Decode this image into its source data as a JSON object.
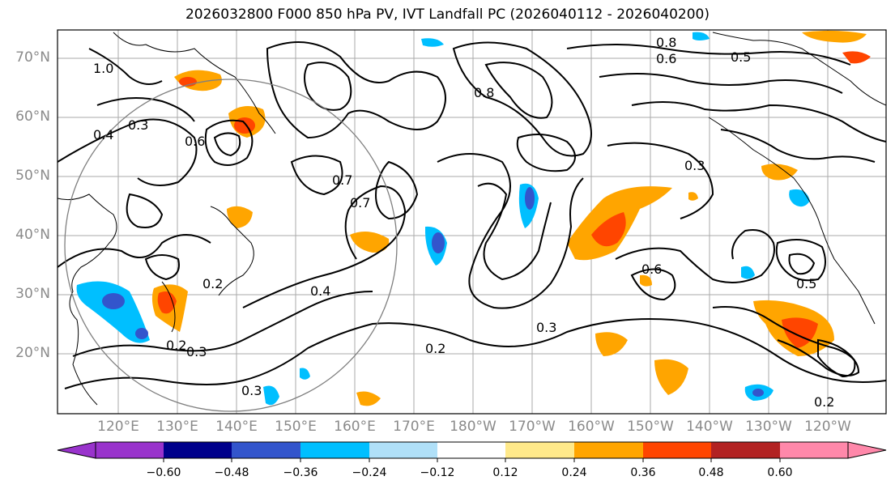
{
  "title": "2026032800 F000 850 hPa PV, IVT Landfall PC (2026040112 - 2026040200)",
  "lat_labels": [
    "70°N",
    "60°N",
    "50°N",
    "40°N",
    "30°N",
    "20°N"
  ],
  "lon_labels": [
    "120°E",
    "130°E",
    "140°E",
    "150°E",
    "160°E",
    "170°E",
    "180°W",
    "170°W",
    "160°W",
    "150°W",
    "140°W",
    "130°W",
    "120°W"
  ],
  "colorbar": {
    "ticks": [
      "−0.60",
      "−0.48",
      "−0.36",
      "−0.24",
      "−0.12",
      "0.12",
      "0.24",
      "0.36",
      "0.48",
      "0.60"
    ],
    "colors": [
      "#9933cc",
      "#00008b",
      "#3355cc",
      "#00bfff",
      "#b0e0f8",
      "#ffffff",
      "#ffe98a",
      "#ffa500",
      "#ff4500",
      "#b22222",
      "#ff88aa",
      "#ff88aa"
    ]
  },
  "contour_labels": [
    "1.0",
    "0.8",
    "0.6",
    "0.5",
    "0.4",
    "0.3",
    "0.7",
    "0.8",
    "0.6",
    "0.4",
    "0.3",
    "0.2",
    "0.5",
    "0.6",
    "0.7",
    "0.3",
    "0.2",
    "0.2",
    "0.3",
    "0.3",
    "0.2"
  ]
}
